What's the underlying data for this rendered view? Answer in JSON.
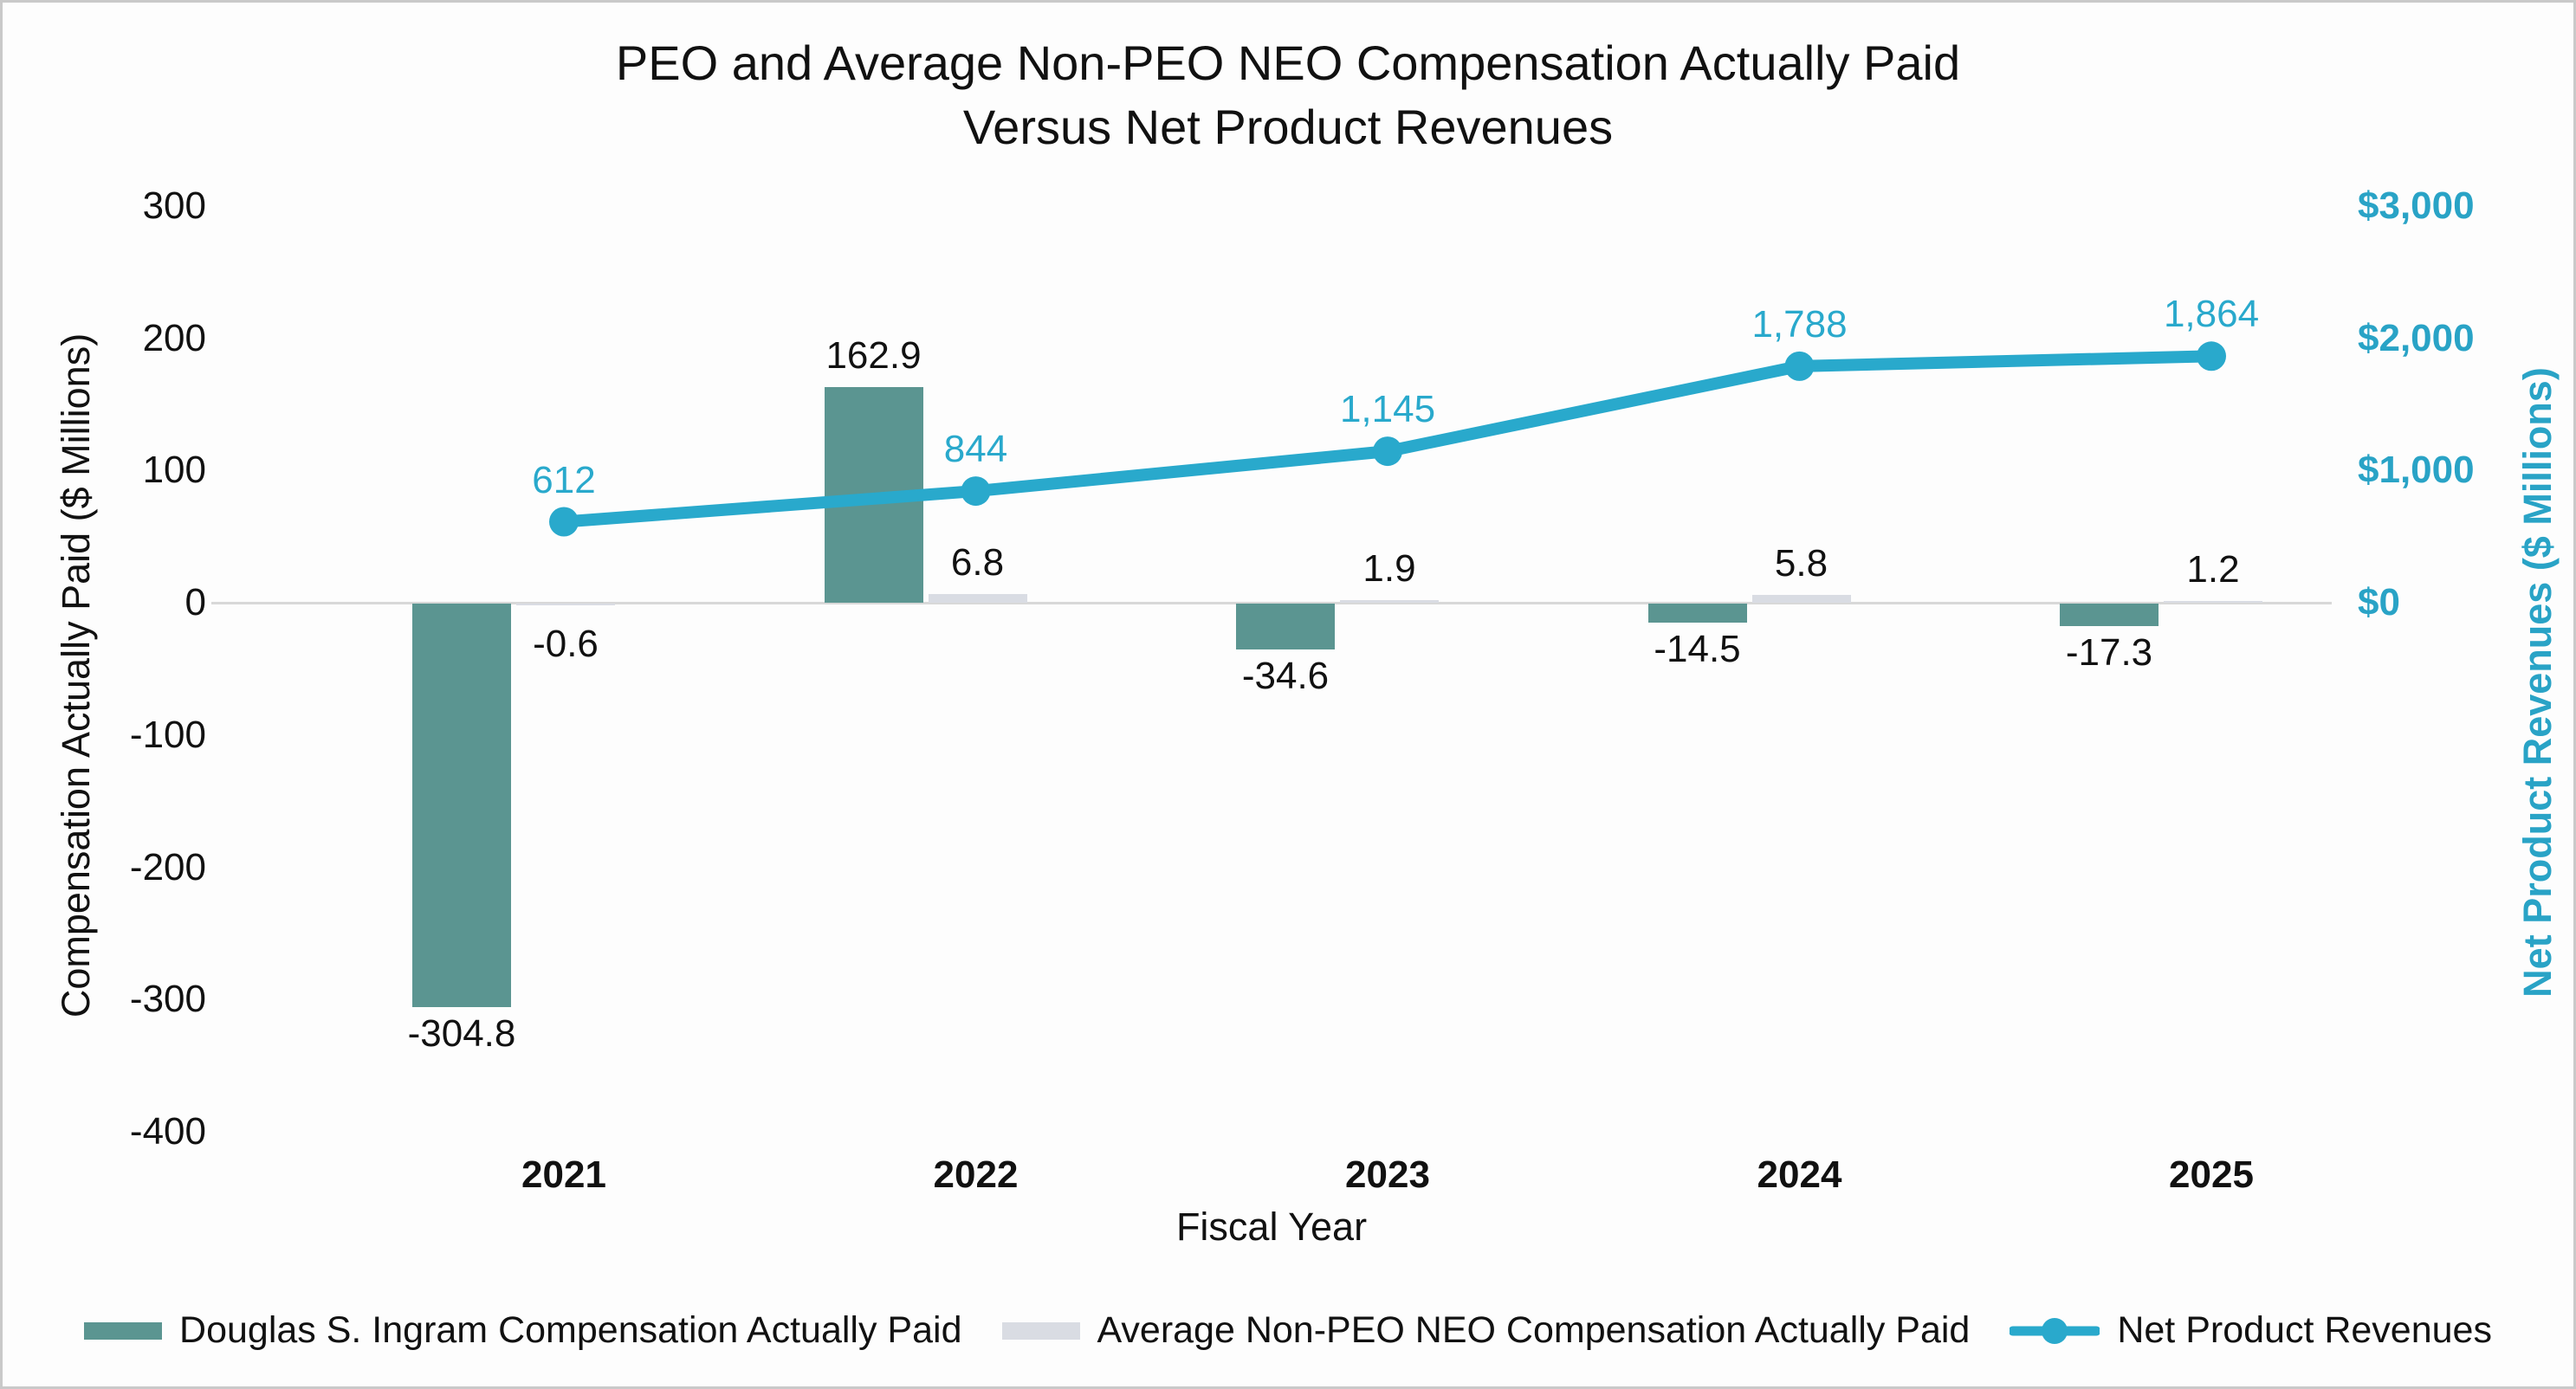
{
  "title": {
    "line1": "PEO and Average Non-PEO NEO Compensation Actually Paid",
    "line2": "Versus Net Product Revenues"
  },
  "left_axis": {
    "title": "Compensation Actually Paid ($ Millions)",
    "tick_labels": [
      "300",
      "200",
      "100",
      "0",
      "-100",
      "-200",
      "-300",
      "-400"
    ],
    "tick_values": [
      300,
      200,
      100,
      0,
      -100,
      -200,
      -300,
      -400
    ]
  },
  "right_axis": {
    "title": "Net Product Revenues ($ Millions)",
    "tick_labels": [
      "$3,000",
      "$2,000",
      "$1,000",
      "$0"
    ],
    "tick_values": [
      3000,
      2000,
      1000,
      0
    ]
  },
  "x_axis": {
    "title": "Fiscal Year",
    "categories": [
      "2021",
      "2022",
      "2023",
      "2024",
      "2025"
    ]
  },
  "colors": {
    "peo_bar": "#5b9591",
    "neo_bar": "#d9dce3",
    "revenue_line": "#29a9cc",
    "right_axis_text": "#29a3c6",
    "zero_line": "#d8d8d8"
  },
  "chart_data": {
    "type": "bar+line",
    "categories": [
      "2021",
      "2022",
      "2023",
      "2024",
      "2025"
    ],
    "series": [
      {
        "name": "Douglas S. Ingram Compensation Actually Paid",
        "type": "bar",
        "axis": "left",
        "color": "#5b9591",
        "values": [
          -304.8,
          162.9,
          -34.6,
          -14.5,
          -17.3
        ],
        "labels": [
          "-304.8",
          "162.9",
          "-34.6",
          "-14.5",
          "-17.3"
        ]
      },
      {
        "name": "Average Non-PEO NEO Compensation Actually Paid",
        "type": "bar",
        "axis": "left",
        "color": "#d9dce3",
        "values": [
          -0.6,
          6.8,
          1.9,
          5.8,
          1.2
        ],
        "labels": [
          "-0.6",
          "6.8",
          "1.9",
          "5.8",
          "1.2"
        ]
      },
      {
        "name": "Net Product Revenues",
        "type": "line",
        "axis": "right",
        "color": "#29a9cc",
        "values": [
          612,
          844,
          1145,
          1788,
          1864
        ],
        "labels": [
          "612",
          "844",
          "1,145",
          "1,788",
          "1,864"
        ]
      }
    ],
    "left_ylim": [
      -400,
      300
    ],
    "right_ylim": [
      0,
      3000
    ],
    "grid": false,
    "legend_position": "bottom",
    "xlabel": "Fiscal Year",
    "ylabel_left": "Compensation Actually Paid ($ Millions)",
    "ylabel_right": "Net Product Revenues ($ Millions)"
  }
}
